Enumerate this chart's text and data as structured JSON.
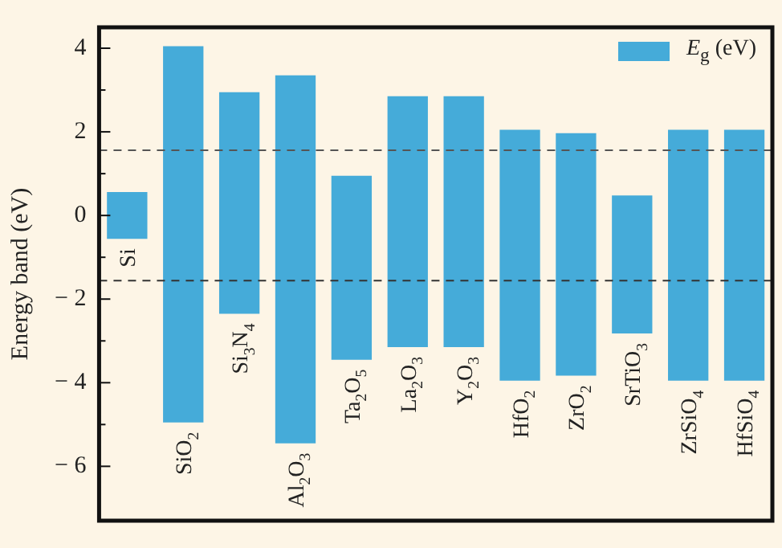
{
  "chart_data": {
    "type": "bar",
    "ylabel": "Energy band (eV)",
    "categories": [
      "Si",
      "SiO$_{2}$",
      "Si$_{3}$N$_{4}$",
      "Al$_{2}$O$_{3}$",
      "Ta$_{2}$O$_{5}$",
      "La$_{2}$O$_{3}$",
      "Y$_{2}$O$_{3}$",
      "HfO$_{2}$",
      "ZrO$_{2}$",
      "SrTiO$_{3}$",
      "ZrSiO$_{4}$",
      "HfSiO$_{4}$"
    ],
    "series": [
      {
        "name": "E$_{g}$ (eV)",
        "color": "#45abd9",
        "values": [
          1.12,
          9.0,
          5.3,
          8.8,
          4.4,
          6.0,
          6.0,
          6.0,
          5.8,
          3.3,
          6.0,
          6.0
        ],
        "base": [
          -0.56,
          -4.95,
          -2.35,
          -5.45,
          -3.45,
          -3.15,
          -3.15,
          -3.95,
          -3.83,
          -2.82,
          -3.95,
          -3.95
        ]
      }
    ],
    "ylim": [
      -7.3,
      4.5
    ],
    "yticks": [
      -6,
      {
        "value": -5,
        "label": null
      },
      -4,
      {
        "value": -3,
        "label": null
      },
      -2,
      {
        "value": -1,
        "label": null
      },
      0,
      {
        "value": 1,
        "label": null
      },
      2,
      {
        "value": 3,
        "label": null
      },
      4
    ],
    "ref_lines": [
      {
        "axis": "y",
        "value": 1.56,
        "color": "#555555",
        "line_style": "dashed"
      },
      {
        "axis": "y",
        "value": -1.56,
        "color": "#333333",
        "line_style": "dashed"
      }
    ],
    "grid": false,
    "legend": "top right"
  }
}
